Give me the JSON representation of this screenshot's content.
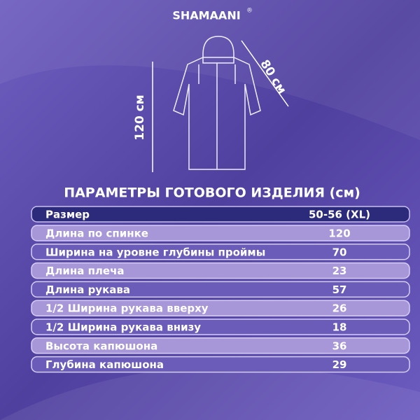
{
  "brand": {
    "name": "SHAMAANI",
    "mark": "®"
  },
  "dimensions": {
    "length": "120 см",
    "sleeve": "80 см"
  },
  "title": "ПАРАМЕТРЫ ГОТОВОГО ИЗДЕЛИЯ (см)",
  "table": {
    "header": [
      "Размер",
      "50-56 (XL)"
    ],
    "rows": [
      [
        "Длина по спинке",
        120
      ],
      [
        "Ширина на уровне глубины проймы",
        70
      ],
      [
        "Длина плеча",
        23
      ],
      [
        "Длина рукава",
        57
      ],
      [
        "1/2 Ширина рукава вверху",
        26
      ],
      [
        "1/2 Ширина рукава внизу",
        18
      ],
      [
        "Высота капюшона",
        36
      ],
      [
        "Глубина капюшона",
        29
      ]
    ]
  }
}
